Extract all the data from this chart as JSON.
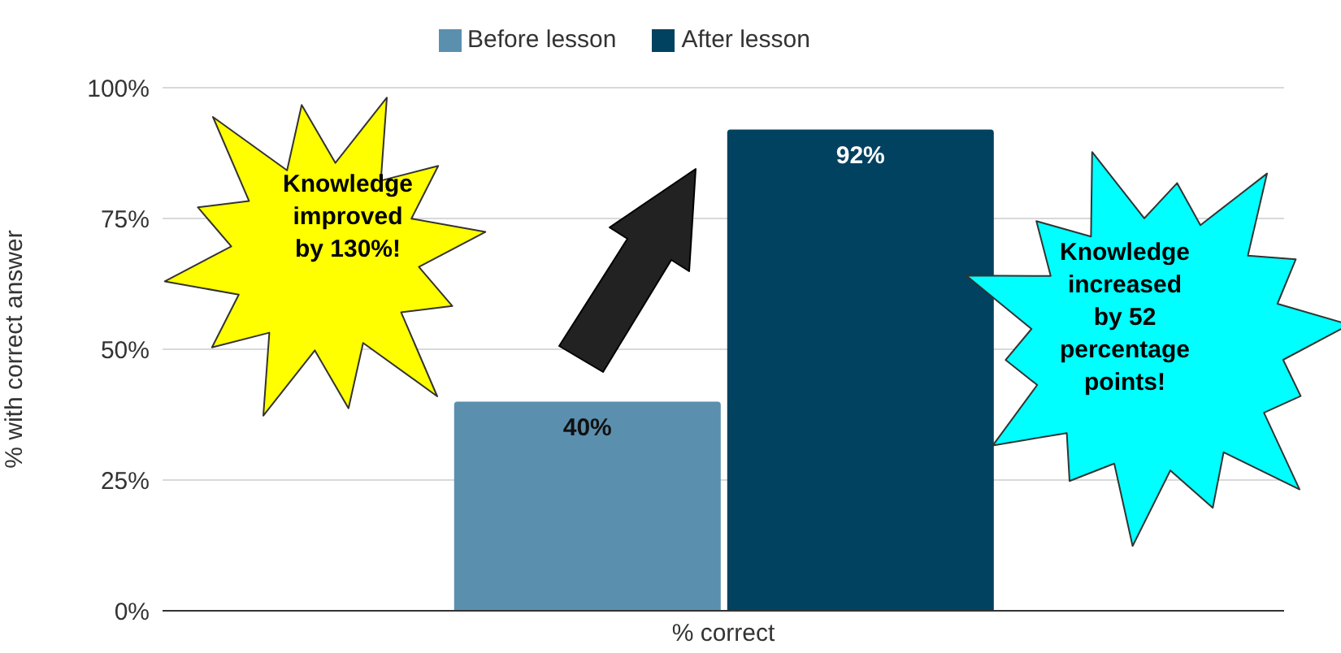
{
  "chart_data": {
    "type": "bar",
    "categories": [
      "% correct"
    ],
    "series": [
      {
        "name": "Before lesson",
        "color": "#5b8fae",
        "values": [
          40
        ],
        "value_labels": [
          "40%"
        ]
      },
      {
        "name": "After lesson",
        "color": "#00425f",
        "values": [
          92
        ],
        "value_labels": [
          "92%"
        ]
      }
    ],
    "ylabel": "% with correct answer",
    "ylim": [
      0,
      100
    ],
    "yticks": [
      {
        "value": 0,
        "label": "0%"
      },
      {
        "value": 25,
        "label": "25%"
      },
      {
        "value": 50,
        "label": "50%"
      },
      {
        "value": 75,
        "label": "75%"
      },
      {
        "value": 100,
        "label": "100%"
      }
    ],
    "grid": "y",
    "legend": "top",
    "annotations": [
      "Knowledge improved by 130%!",
      "Knowledge increased by 52 percentage points!"
    ]
  }
}
